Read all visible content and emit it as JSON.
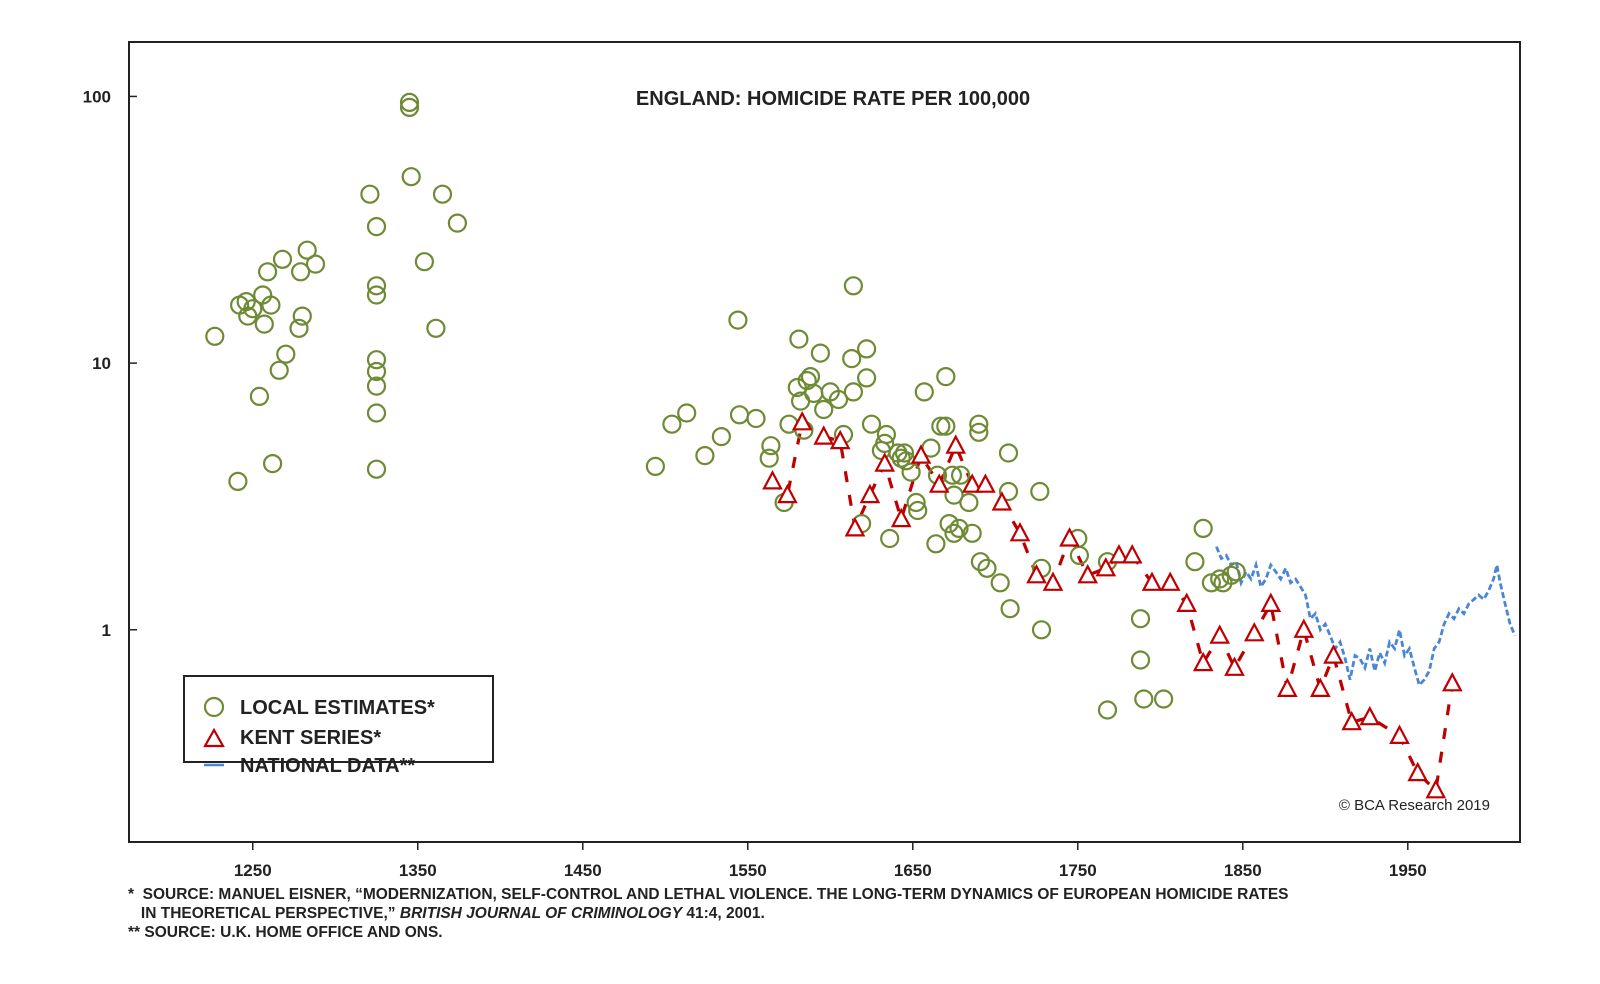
{
  "chart_data": {
    "type": "scatter",
    "title": "ENGLAND: HOMICIDE RATE PER 100,000",
    "xlabel": "",
    "ylabel": "",
    "yscale": "log",
    "xlim": [
      1175,
      2018
    ],
    "ylim": [
      0.16,
      160
    ],
    "x_ticks": [
      1250,
      1350,
      1450,
      1550,
      1650,
      1750,
      1850,
      1950
    ],
    "x_tick_labels": [
      "1250",
      "1350",
      "1450",
      "1550",
      "1650",
      "1750",
      "1850",
      "1950"
    ],
    "y_ticks": [
      1,
      10,
      100
    ],
    "y_tick_labels": [
      "1",
      "10",
      "100"
    ],
    "grid": false,
    "legend_position": "bottom-left",
    "copyright": "© BCA Research 2019",
    "series": [
      {
        "name": "LOCAL ESTIMATES*",
        "marker": "circle",
        "color": "#6f8a35",
        "points": [
          [
            1227,
            12.6
          ],
          [
            1241,
            3.6
          ],
          [
            1242,
            16.5
          ],
          [
            1246,
            17.0
          ],
          [
            1247,
            15.0
          ],
          [
            1250,
            16.0
          ],
          [
            1254,
            7.5
          ],
          [
            1256,
            18.0
          ],
          [
            1257,
            14.0
          ],
          [
            1259,
            22.0
          ],
          [
            1261,
            16.5
          ],
          [
            1262,
            4.2
          ],
          [
            1266,
            9.4
          ],
          [
            1268,
            24.5
          ],
          [
            1270,
            10.8
          ],
          [
            1278,
            13.5
          ],
          [
            1279,
            22.0
          ],
          [
            1280,
            15.0
          ],
          [
            1283,
            26.5
          ],
          [
            1288,
            23.5
          ],
          [
            1321,
            43.0
          ],
          [
            1325,
            32.5
          ],
          [
            1325,
            19.5
          ],
          [
            1325,
            18.0
          ],
          [
            1325,
            10.3
          ],
          [
            1325,
            9.3
          ],
          [
            1325,
            8.2
          ],
          [
            1325,
            6.5
          ],
          [
            1325,
            4.0
          ],
          [
            1345,
            95.0
          ],
          [
            1345,
            91.0
          ],
          [
            1346,
            50.0
          ],
          [
            1354,
            24.0
          ],
          [
            1361,
            13.5
          ],
          [
            1365,
            43.0
          ],
          [
            1374,
            33.5
          ],
          [
            1494,
            4.1
          ],
          [
            1504,
            5.9
          ],
          [
            1513,
            6.5
          ],
          [
            1524,
            4.5
          ],
          [
            1534,
            5.3
          ],
          [
            1544,
            14.5
          ],
          [
            1545,
            6.4
          ],
          [
            1555,
            6.2
          ],
          [
            1563,
            4.4
          ],
          [
            1564,
            4.9
          ],
          [
            1572,
            3.0
          ],
          [
            1575,
            5.9
          ],
          [
            1580,
            8.1
          ],
          [
            1581,
            12.3
          ],
          [
            1582,
            7.2
          ],
          [
            1584,
            5.6
          ],
          [
            1586,
            8.6
          ],
          [
            1588,
            8.9
          ],
          [
            1590,
            7.7
          ],
          [
            1594,
            10.9
          ],
          [
            1596,
            6.7
          ],
          [
            1600,
            7.8
          ],
          [
            1605,
            7.3
          ],
          [
            1608,
            5.4
          ],
          [
            1613,
            10.4
          ],
          [
            1614,
            19.5
          ],
          [
            1614,
            7.8
          ],
          [
            1619,
            2.5
          ],
          [
            1622,
            8.8
          ],
          [
            1622,
            11.3
          ],
          [
            1625,
            5.9
          ],
          [
            1631,
            4.7
          ],
          [
            1633,
            5.0
          ],
          [
            1634,
            5.4
          ],
          [
            1636,
            2.2
          ],
          [
            1641,
            4.6
          ],
          [
            1643,
            4.4
          ],
          [
            1645,
            4.6
          ],
          [
            1646,
            4.3
          ],
          [
            1649,
            3.9
          ],
          [
            1652,
            3.0
          ],
          [
            1653,
            2.8
          ],
          [
            1657,
            7.8
          ],
          [
            1661,
            4.8
          ],
          [
            1664,
            2.1
          ],
          [
            1665,
            3.8
          ],
          [
            1667,
            5.8
          ],
          [
            1670,
            8.9
          ],
          [
            1670,
            5.8
          ],
          [
            1672,
            2.5
          ],
          [
            1674,
            3.8
          ],
          [
            1675,
            3.2
          ],
          [
            1675,
            2.3
          ],
          [
            1678,
            2.4
          ],
          [
            1679,
            3.8
          ],
          [
            1684,
            3.0
          ],
          [
            1686,
            2.3
          ],
          [
            1690,
            5.5
          ],
          [
            1690,
            5.9
          ],
          [
            1691,
            1.8
          ],
          [
            1695,
            1.7
          ],
          [
            1703,
            1.5
          ],
          [
            1708,
            4.6
          ],
          [
            1708,
            3.3
          ],
          [
            1709,
            1.2
          ],
          [
            1727,
            3.3
          ],
          [
            1728,
            1.7
          ],
          [
            1728,
            1.0
          ],
          [
            1750,
            2.2
          ],
          [
            1751,
            1.9
          ],
          [
            1768,
            1.8
          ],
          [
            1768,
            0.5
          ],
          [
            1788,
            1.1
          ],
          [
            1788,
            0.77
          ],
          [
            1790,
            0.55
          ],
          [
            1802,
            0.55
          ],
          [
            1821,
            1.8
          ],
          [
            1826,
            2.4
          ],
          [
            1831,
            1.5
          ],
          [
            1836,
            1.55
          ],
          [
            1838,
            1.5
          ],
          [
            1843,
            1.6
          ],
          [
            1846,
            1.65
          ]
        ]
      },
      {
        "name": "KENT SERIES*",
        "marker": "triangle",
        "color": "#c00000",
        "points": [
          [
            1565,
            3.6
          ],
          [
            1574,
            3.2
          ],
          [
            1583,
            6.0
          ],
          [
            1596,
            5.3
          ],
          [
            1606,
            5.1
          ],
          [
            1615,
            2.4
          ],
          [
            1624,
            3.2
          ],
          [
            1633,
            4.2
          ],
          [
            1643,
            2.6
          ],
          [
            1655,
            4.5
          ],
          [
            1666,
            3.5
          ],
          [
            1676,
            4.9
          ],
          [
            1686,
            3.5
          ],
          [
            1694,
            3.5
          ],
          [
            1704,
            3.0
          ],
          [
            1715,
            2.3
          ],
          [
            1725,
            1.6
          ],
          [
            1735,
            1.5
          ],
          [
            1745,
            2.2
          ],
          [
            1756,
            1.6
          ],
          [
            1767,
            1.7
          ],
          [
            1775,
            1.9
          ],
          [
            1783,
            1.9
          ],
          [
            1795,
            1.5
          ],
          [
            1806,
            1.5
          ],
          [
            1816,
            1.25
          ],
          [
            1826,
            0.75
          ],
          [
            1836,
            0.95
          ],
          [
            1845,
            0.72
          ],
          [
            1857,
            0.97
          ],
          [
            1867,
            1.25
          ],
          [
            1877,
            0.6
          ],
          [
            1887,
            1.0
          ],
          [
            1897,
            0.6
          ],
          [
            1905,
            0.8
          ],
          [
            1916,
            0.45
          ],
          [
            1927,
            0.47
          ],
          [
            1945,
            0.4
          ],
          [
            1956,
            0.29
          ],
          [
            1967,
            0.25
          ],
          [
            1977,
            0.63
          ]
        ]
      },
      {
        "name": "NATIONAL DATA**",
        "marker": "line",
        "color": "#4a86d4",
        "points": [
          [
            1834,
            2.05
          ],
          [
            1837,
            1.85
          ],
          [
            1840,
            1.9
          ],
          [
            1843,
            1.75
          ],
          [
            1846,
            1.8
          ],
          [
            1849,
            1.5
          ],
          [
            1852,
            1.65
          ],
          [
            1855,
            1.55
          ],
          [
            1858,
            1.75
          ],
          [
            1861,
            1.45
          ],
          [
            1864,
            1.55
          ],
          [
            1867,
            1.75
          ],
          [
            1870,
            1.65
          ],
          [
            1873,
            1.55
          ],
          [
            1876,
            1.7
          ],
          [
            1879,
            1.5
          ],
          [
            1882,
            1.55
          ],
          [
            1885,
            1.45
          ],
          [
            1888,
            1.35
          ],
          [
            1891,
            1.1
          ],
          [
            1894,
            1.15
          ],
          [
            1897,
            1.0
          ],
          [
            1900,
            1.05
          ],
          [
            1903,
            0.95
          ],
          [
            1906,
            0.85
          ],
          [
            1909,
            0.9
          ],
          [
            1912,
            0.78
          ],
          [
            1915,
            0.65
          ],
          [
            1918,
            0.8
          ],
          [
            1921,
            0.78
          ],
          [
            1924,
            0.72
          ],
          [
            1927,
            0.85
          ],
          [
            1930,
            0.7
          ],
          [
            1933,
            0.82
          ],
          [
            1936,
            0.75
          ],
          [
            1939,
            0.9
          ],
          [
            1942,
            0.85
          ],
          [
            1945,
            1.0
          ],
          [
            1948,
            0.8
          ],
          [
            1951,
            0.85
          ],
          [
            1954,
            0.72
          ],
          [
            1957,
            0.62
          ],
          [
            1960,
            0.65
          ],
          [
            1963,
            0.7
          ],
          [
            1966,
            0.85
          ],
          [
            1969,
            0.9
          ],
          [
            1972,
            1.05
          ],
          [
            1975,
            1.15
          ],
          [
            1978,
            1.1
          ],
          [
            1981,
            1.2
          ],
          [
            1984,
            1.15
          ],
          [
            1987,
            1.25
          ],
          [
            1990,
            1.3
          ],
          [
            1993,
            1.35
          ],
          [
            1996,
            1.3
          ],
          [
            1999,
            1.4
          ],
          [
            2002,
            1.55
          ],
          [
            2004,
            1.75
          ],
          [
            2006,
            1.5
          ],
          [
            2009,
            1.25
          ],
          [
            2012,
            1.05
          ],
          [
            2015,
            0.95
          ]
        ]
      }
    ]
  },
  "footnotes": {
    "line1": "*  SOURCE: MANUEL EISNER, “MODERNIZATION, SELF-CONTROL AND LETHAL VIOLENCE. THE LONG-TERM DYNAMICS OF EUROPEAN HOMICIDE RATES",
    "line2_prefix": "   IN THEORETICAL PERSPECTIVE,” ",
    "line2_journal": "BRITISH JOURNAL OF CRIMINOLOGY",
    "line2_suffix": " 41:4, 2001.",
    "line3": "** SOURCE: U.K. HOME OFFICE AND ONS."
  }
}
